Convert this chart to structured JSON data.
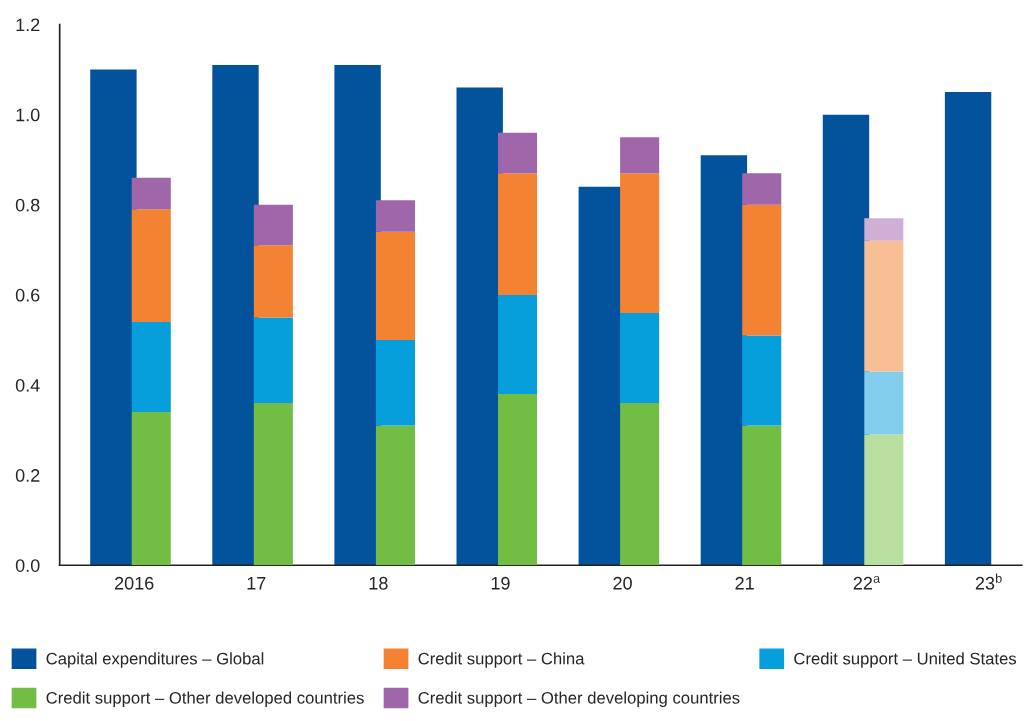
{
  "chart_data": [
    {
      "type": "bar",
      "categories": [
        null,
        null,
        null,
        null,
        null,
        null,
        null,
        null
      ],
      "series": [
        {
          "name": "Capital expenditures – Global",
          "color": "#02529c",
          "values": [
            1.1,
            1.11,
            1.11,
            1.06,
            0.84,
            0.91,
            1.0,
            1.05
          ]
        }
      ],
      "ylim": [
        0,
        1.2
      ],
      "yticks": [
        {
          "value": 0,
          "label": "0.0"
        },
        0.2,
        0.4,
        0.6,
        0.8,
        {
          "value": 1,
          "label": "1.0"
        },
        1.2
      ],
      "tick_labels": "y",
      "grid": false,
      "legend": "bottom"
    },
    {
      "type": "bar",
      "stacked": true,
      "categories": [
        "2016",
        "17",
        "18",
        "19",
        "20",
        "21",
        "22$^{a}$",
        "23$^{b}$"
      ],
      "series": [
        {
          "name": "Credit support – Other developed countries",
          "color": "#72be44",
          "colors": [
            "#72be44",
            "#72be44",
            "#72be44",
            "#72be44",
            "#72be44",
            "#72be44",
            "#b8dea0",
            "#72be44"
          ],
          "values": [
            0.34,
            0.36,
            0.31,
            0.38,
            0.36,
            0.31,
            0.29,
            null
          ]
        },
        {
          "name": "Credit support – United States",
          "color": "#069fdb",
          "colors": [
            "#069fdb",
            "#069fdb",
            "#069fdb",
            "#069fdb",
            "#069fdb",
            "#069fdb",
            "#83cdec",
            "#069fdb"
          ],
          "values": [
            0.2,
            0.19,
            0.19,
            0.22,
            0.2,
            0.2,
            0.14,
            null
          ]
        },
        {
          "name": "Credit support – China",
          "color": "#f48233",
          "colors": [
            "#f48233",
            "#f48233",
            "#f48233",
            "#f48233",
            "#f48233",
            "#f48233",
            "#f8be96",
            "#f48233"
          ],
          "values": [
            0.25,
            0.16,
            0.24,
            0.27,
            0.31,
            0.29,
            0.29,
            null
          ]
        },
        {
          "name": "Credit support – Other developing countries",
          "color": "#a066aa",
          "colors": [
            "#a066aa",
            "#a066aa",
            "#a066aa",
            "#a066aa",
            "#a066aa",
            "#a066aa",
            "#ceb0d4",
            "#a066aa"
          ],
          "values": [
            0.07,
            0.09,
            0.07,
            0.09,
            0.08,
            0.07,
            0.05,
            null
          ]
        }
      ],
      "ylim": [
        0,
        1.2
      ],
      "tick_labels": "x",
      "legend": "bottom"
    }
  ]
}
